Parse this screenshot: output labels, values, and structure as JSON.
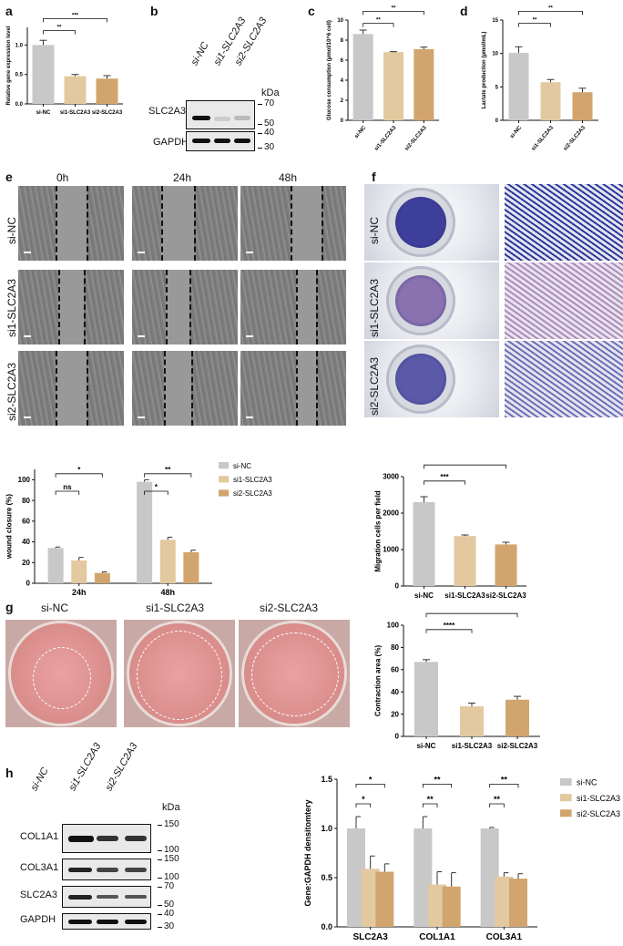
{
  "panels": {
    "a": "a",
    "b": "b",
    "c": "c",
    "d": "d",
    "e": "e",
    "f": "f",
    "g": "g",
    "h": "h"
  },
  "colors": {
    "si_nc": "#c8c8c8",
    "si1": "#e3c9a0",
    "si2": "#d2a56e"
  },
  "blot_b": {
    "lanes": [
      "si-NC",
      "si1-SLC2A3",
      "si2-SLC2A3"
    ],
    "unit": "kDa",
    "proteins": [
      "SLC2A3",
      "GAPDH"
    ],
    "markers": [
      "70",
      "50",
      "40",
      "30"
    ]
  },
  "wound": {
    "times": [
      "0h",
      "24h",
      "48h"
    ],
    "rows": [
      "si-NC",
      "si1-SLC2A3",
      "si2-SLC2A3"
    ]
  },
  "transwell": {
    "rows": [
      "si-NC",
      "si1-SLC2A3",
      "si2-SLC2A3"
    ]
  },
  "gel": {
    "labels": [
      "si-NC",
      "si1-SLC2A3",
      "si2-SLC2A3"
    ]
  },
  "blot_h": {
    "lanes": [
      "si-NC",
      "si1-SLC2A3",
      "si2-SLC2A3"
    ],
    "unit": "kDa",
    "proteins": [
      "COL1A1",
      "COL3A1",
      "SLC2A3",
      "GAPDH"
    ],
    "markers": [
      "150",
      "100",
      "150",
      "100",
      "70",
      "50",
      "40",
      "30"
    ]
  },
  "chart_data": [
    {
      "panel": "a",
      "type": "bar",
      "categories": [
        "si-NC",
        "si1-SLC2A3",
        "si2-SLC2A3"
      ],
      "values": [
        1.0,
        0.47,
        0.43
      ],
      "errors": [
        0.08,
        0.03,
        0.05
      ],
      "ylabel": "Relative gene expression level",
      "ylim": [
        0,
        1.3
      ],
      "yticks": [
        0,
        0.5,
        1.0
      ],
      "ytick_labels": [
        "0.0",
        "0.5",
        "1.0"
      ],
      "significance": [
        {
          "from": 0,
          "to": 1,
          "label": "**"
        },
        {
          "from": 0,
          "to": 2,
          "label": "***"
        }
      ]
    },
    {
      "panel": "c",
      "type": "bar",
      "categories": [
        "si-NC",
        "si1-SLC2A3",
        "si2-SLC2A3"
      ],
      "values": [
        8.6,
        6.8,
        7.1
      ],
      "errors": [
        0.4,
        0.05,
        0.2
      ],
      "ylabel": "Glucose consumption (μmol/10^6 cell)",
      "ylim": [
        0,
        10
      ],
      "yticks": [
        0,
        2,
        4,
        6,
        8,
        10
      ],
      "ytick_labels": [
        "0",
        "2",
        "4",
        "6",
        "8",
        "10"
      ],
      "significance": [
        {
          "from": 0,
          "to": 1,
          "label": "**"
        },
        {
          "from": 0,
          "to": 2,
          "label": "**"
        }
      ]
    },
    {
      "panel": "d",
      "type": "bar",
      "categories": [
        "si-NC",
        "si1-SLC2A3",
        "si2-SLC2A3"
      ],
      "values": [
        10.1,
        5.7,
        4.2
      ],
      "errors": [
        0.9,
        0.4,
        0.6
      ],
      "ylabel": "Lactate production (μmol/mL)",
      "ylim": [
        0,
        15
      ],
      "yticks": [
        0,
        5,
        10,
        15
      ],
      "ytick_labels": [
        "0",
        "5",
        "10",
        "15"
      ],
      "significance": [
        {
          "from": 0,
          "to": 1,
          "label": "**"
        },
        {
          "from": 0,
          "to": 2,
          "label": "**"
        }
      ]
    },
    {
      "panel": "e",
      "type": "bar",
      "categories": [
        "24h",
        "48h"
      ],
      "series": [
        {
          "name": "si-NC",
          "values": [
            34,
            98
          ],
          "errors": [
            1,
            2
          ]
        },
        {
          "name": "si1-SLC2A3",
          "values": [
            22,
            42
          ],
          "errors": [
            3,
            2.5
          ]
        },
        {
          "name": "si2-SLC2A3",
          "values": [
            10,
            30
          ],
          "errors": [
            1,
            2
          ]
        }
      ],
      "ylabel": "wound closure (%)",
      "ylim": [
        0,
        110
      ],
      "yticks": [
        0,
        20,
        40,
        60,
        80,
        100
      ],
      "ytick_labels": [
        "0",
        "20",
        "40",
        "60",
        "80",
        "100"
      ],
      "legend": "top-right",
      "significance": [
        {
          "group": 0,
          "from": 0,
          "to": 1,
          "label": "ns"
        },
        {
          "group": 0,
          "from": 0,
          "to": 2,
          "label": "*"
        },
        {
          "group": 1,
          "from": 0,
          "to": 1,
          "label": "*"
        },
        {
          "group": 1,
          "from": 0,
          "to": 2,
          "label": "**"
        }
      ]
    },
    {
      "panel": "f",
      "type": "bar",
      "categories": [
        "si-NC",
        "si1-SLC2A3",
        "si2-SLC2A3"
      ],
      "values": [
        2300,
        1370,
        1140
      ],
      "errors": [
        150,
        30,
        60
      ],
      "ylabel": "Migration cells per field",
      "ylim": [
        0,
        3000
      ],
      "yticks": [
        0,
        1000,
        2000,
        3000
      ],
      "ytick_labels": [
        "0",
        "1000",
        "2000",
        "3000"
      ],
      "significance": [
        {
          "from": 0,
          "to": 1,
          "label": "***"
        },
        {
          "from": 0,
          "to": 2,
          "label": "***"
        }
      ]
    },
    {
      "panel": "g",
      "type": "bar",
      "categories": [
        "si-NC",
        "si1-SLC2A3",
        "si2-SLC2A3"
      ],
      "values": [
        67,
        27,
        33
      ],
      "errors": [
        2,
        3,
        3
      ],
      "ylabel": "Contraction area (%)",
      "ylim": [
        0,
        100
      ],
      "yticks": [
        0,
        20,
        40,
        60,
        80,
        100
      ],
      "ytick_labels": [
        "0",
        "20",
        "40",
        "60",
        "80",
        "100"
      ],
      "significance": [
        {
          "from": 0,
          "to": 1,
          "label": "****"
        },
        {
          "from": 0,
          "to": 2,
          "label": "***"
        }
      ]
    },
    {
      "panel": "h",
      "type": "bar",
      "categories": [
        "SLC2A3",
        "COL1A1",
        "COL3A1"
      ],
      "series": [
        {
          "name": "si-NC",
          "values": [
            1.0,
            1.0,
            1.0
          ],
          "errors": [
            0.12,
            0.12,
            0.01
          ]
        },
        {
          "name": "si1-SLC2A3",
          "values": [
            0.59,
            0.43,
            0.51
          ],
          "errors": [
            0.13,
            0.13,
            0.04
          ]
        },
        {
          "name": "si2-SLC2A3",
          "values": [
            0.56,
            0.41,
            0.49
          ],
          "errors": [
            0.08,
            0.14,
            0.05
          ]
        }
      ],
      "ylabel": "Gene:GAPDH densitomtery",
      "ylim": [
        0,
        1.5
      ],
      "yticks": [
        0,
        0.5,
        1.0,
        1.5
      ],
      "ytick_labels": [
        "0.0",
        "0.5",
        "1.0",
        "1.5"
      ],
      "legend": "top-right",
      "significance": [
        {
          "group": 0,
          "from": 0,
          "to": 1,
          "label": "*"
        },
        {
          "group": 0,
          "from": 0,
          "to": 2,
          "label": "*"
        },
        {
          "group": 1,
          "from": 0,
          "to": 1,
          "label": "**"
        },
        {
          "group": 1,
          "from": 0,
          "to": 2,
          "label": "**"
        },
        {
          "group": 2,
          "from": 0,
          "to": 1,
          "label": "**"
        },
        {
          "group": 2,
          "from": 0,
          "to": 2,
          "label": "**"
        }
      ]
    }
  ]
}
